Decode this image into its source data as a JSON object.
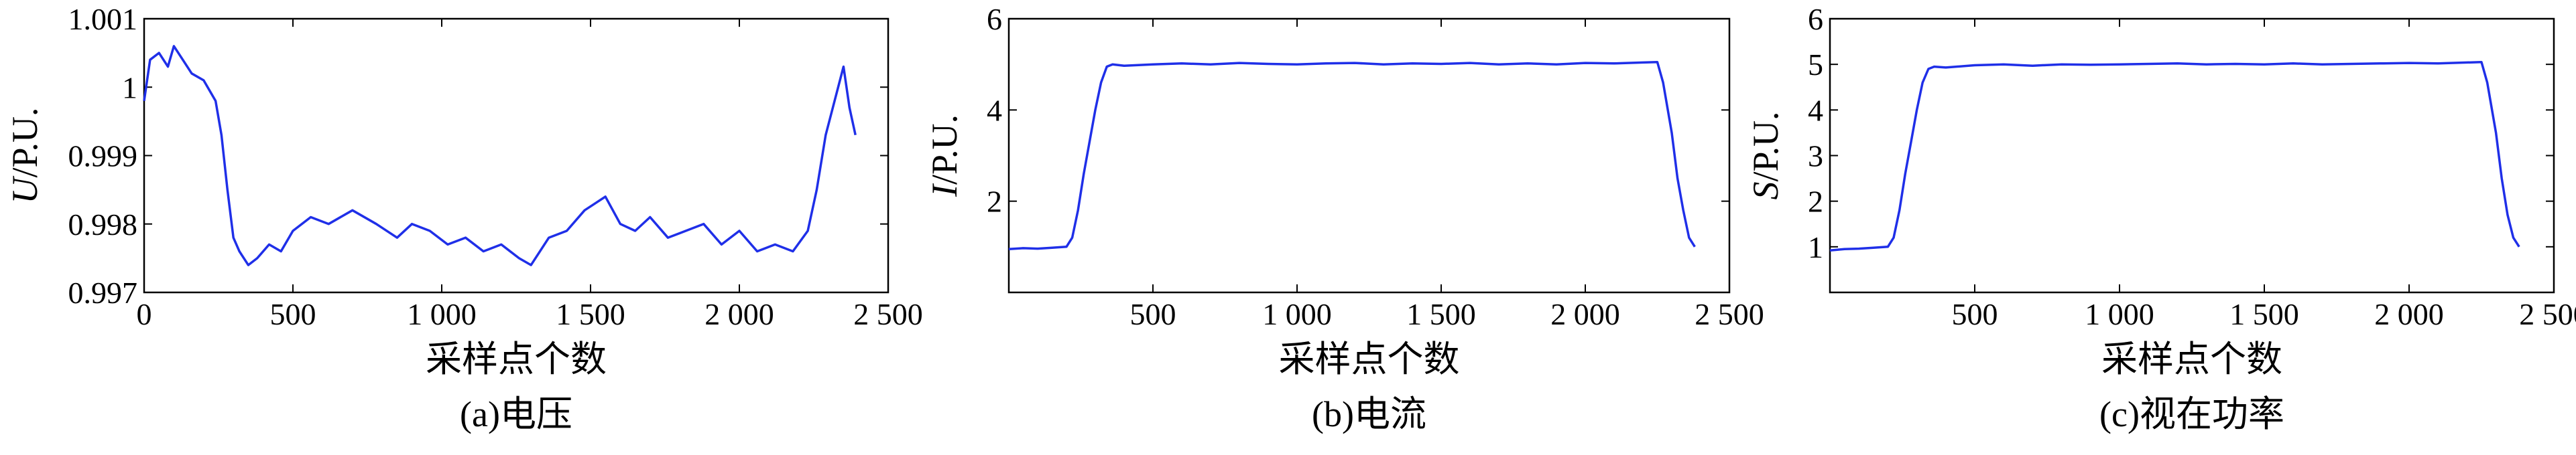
{
  "colors": {
    "line": "#1f2fe8",
    "axis": "#000000",
    "background": "#ffffff"
  },
  "chart_data": [
    {
      "type": "line",
      "caption": "(a)电压",
      "xlabel": "采样点个数",
      "ylabel_var": "U",
      "ylabel_unit": "/P.U.",
      "xlim": [
        0,
        2500
      ],
      "ylim": [
        0.997,
        1.001
      ],
      "xticks": [
        0,
        500,
        1000,
        1500,
        2000,
        2500
      ],
      "xtick_labels": [
        "0",
        "500",
        "1 000",
        "1 500",
        "2 000",
        "2 500"
      ],
      "yticks": [
        0.997,
        0.998,
        0.999,
        1.0,
        1.001
      ],
      "ytick_labels": [
        "0.997",
        "0.998",
        "0.999",
        "1",
        "1.001"
      ],
      "grid": false,
      "series": [
        {
          "x": [
            0,
            20,
            50,
            80,
            100,
            130,
            160,
            200,
            240,
            260,
            280,
            300,
            320,
            350,
            380,
            420,
            460,
            500,
            560,
            620,
            700,
            780,
            850,
            900,
            960,
            1020,
            1080,
            1140,
            1200,
            1260,
            1300,
            1360,
            1420,
            1480,
            1550,
            1600,
            1650,
            1700,
            1760,
            1820,
            1880,
            1940,
            2000,
            2060,
            2120,
            2180,
            2230,
            2260,
            2290,
            2320,
            2350,
            2370,
            2390
          ],
          "y": [
            0.9998,
            1.0004,
            1.0005,
            1.0003,
            1.0006,
            1.0004,
            1.0002,
            1.0001,
            0.9998,
            0.9993,
            0.9985,
            0.9978,
            0.9976,
            0.9974,
            0.9975,
            0.9977,
            0.9976,
            0.9979,
            0.9981,
            0.998,
            0.9982,
            0.998,
            0.9978,
            0.998,
            0.9979,
            0.9977,
            0.9978,
            0.9976,
            0.9977,
            0.9975,
            0.9974,
            0.9978,
            0.9979,
            0.9982,
            0.9984,
            0.998,
            0.9979,
            0.9981,
            0.9978,
            0.9979,
            0.998,
            0.9977,
            0.9979,
            0.9976,
            0.9977,
            0.9976,
            0.9979,
            0.9985,
            0.9993,
            0.9998,
            1.0003,
            0.9997,
            0.9993
          ]
        }
      ]
    },
    {
      "type": "line",
      "caption": "(b)电流",
      "xlabel": "采样点个数",
      "ylabel_var": "I",
      "ylabel_unit": "/P.U.",
      "xlim": [
        0,
        2500
      ],
      "ylim": [
        0,
        6
      ],
      "xticks": [
        500,
        1000,
        1500,
        2000,
        2500
      ],
      "xtick_labels": [
        "500",
        "1 000",
        "1 500",
        "2 000",
        "2 500"
      ],
      "yticks": [
        2,
        4,
        6
      ],
      "ytick_labels": [
        "2",
        "4",
        "6"
      ],
      "grid": false,
      "series": [
        {
          "x": [
            0,
            50,
            100,
            150,
            200,
            220,
            240,
            260,
            280,
            300,
            320,
            340,
            360,
            400,
            500,
            600,
            700,
            800,
            900,
            1000,
            1100,
            1200,
            1300,
            1400,
            1500,
            1600,
            1700,
            1800,
            1900,
            2000,
            2100,
            2200,
            2250,
            2270,
            2300,
            2320,
            2340,
            2360,
            2380
          ],
          "y": [
            0.95,
            0.97,
            0.96,
            0.98,
            1.0,
            1.2,
            1.8,
            2.6,
            3.3,
            4.0,
            4.6,
            4.95,
            5.0,
            4.97,
            5.0,
            5.02,
            5.0,
            5.03,
            5.01,
            5.0,
            5.02,
            5.03,
            5.0,
            5.02,
            5.01,
            5.03,
            5.0,
            5.02,
            5.0,
            5.03,
            5.02,
            5.04,
            5.05,
            4.6,
            3.5,
            2.5,
            1.8,
            1.2,
            1.0
          ]
        }
      ]
    },
    {
      "type": "line",
      "caption": "(c)视在功率",
      "xlabel": "采样点个数",
      "ylabel_var": "S",
      "ylabel_unit": "/P.U.",
      "xlim": [
        0,
        2500
      ],
      "ylim": [
        0,
        6
      ],
      "xticks": [
        500,
        1000,
        1500,
        2000,
        2500
      ],
      "xtick_labels": [
        "500",
        "1 000",
        "1 500",
        "2 000",
        "2 500"
      ],
      "yticks": [
        1,
        2,
        3,
        4,
        5,
        6
      ],
      "ytick_labels": [
        "1",
        "2",
        "3",
        "4",
        "5",
        "6"
      ],
      "grid": false,
      "series": [
        {
          "x": [
            0,
            50,
            100,
            150,
            200,
            220,
            240,
            260,
            280,
            300,
            320,
            340,
            360,
            400,
            500,
            600,
            700,
            800,
            900,
            1000,
            1100,
            1200,
            1300,
            1400,
            1500,
            1600,
            1700,
            1800,
            1900,
            2000,
            2100,
            2200,
            2250,
            2270,
            2300,
            2320,
            2340,
            2360,
            2380
          ],
          "y": [
            0.92,
            0.95,
            0.96,
            0.98,
            1.0,
            1.2,
            1.8,
            2.6,
            3.3,
            4.0,
            4.6,
            4.9,
            4.95,
            4.93,
            4.98,
            5.0,
            4.97,
            5.0,
            4.99,
            5.0,
            5.01,
            5.02,
            5.0,
            5.01,
            5.0,
            5.02,
            5.0,
            5.01,
            5.02,
            5.03,
            5.02,
            5.04,
            5.05,
            4.6,
            3.5,
            2.5,
            1.7,
            1.2,
            1.0
          ]
        }
      ]
    }
  ]
}
